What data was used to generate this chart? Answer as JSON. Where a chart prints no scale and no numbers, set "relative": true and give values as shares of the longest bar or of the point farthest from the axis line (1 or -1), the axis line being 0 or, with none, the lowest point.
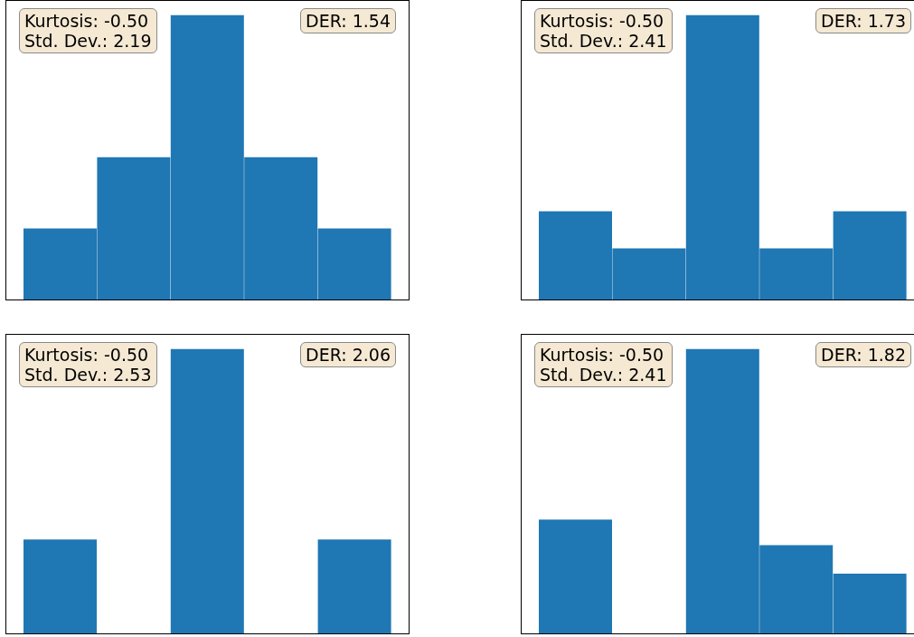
{
  "chart_data": [
    {
      "type": "bar",
      "relative": true,
      "categories": [
        null,
        null,
        null,
        null,
        null
      ],
      "values": [
        0.25,
        0.5,
        1,
        0.5,
        0.25
      ],
      "color": "#1f77b4",
      "annotations": [
        "Kurtosis: -0.50\nStd. Dev.: 2.19",
        "DER: 1.54"
      ]
    },
    {
      "type": "bar",
      "relative": true,
      "categories": [
        null,
        null,
        null,
        null,
        null
      ],
      "values": [
        0.31,
        0.18,
        1,
        0.18,
        0.31
      ],
      "color": "#1f77b4",
      "annotations": [
        "Kurtosis: -0.50\nStd. Dev.: 2.41",
        "DER: 1.73"
      ]
    },
    {
      "type": "bar",
      "relative": true,
      "categories": [
        null,
        null,
        null,
        null,
        null
      ],
      "values": [
        0.33,
        0,
        1,
        0,
        0.33
      ],
      "color": "#1f77b4",
      "annotations": [
        "Kurtosis: -0.50\nStd. Dev.: 2.53",
        "DER: 2.06"
      ]
    },
    {
      "type": "bar",
      "relative": true,
      "categories": [
        null,
        null,
        null,
        null,
        null
      ],
      "values": [
        0.4,
        0,
        1,
        0.31,
        0.21
      ],
      "color": "#1f77b4",
      "annotations": [
        "Kurtosis: -0.50\nStd. Dev.: 2.41",
        "DER: 1.82"
      ]
    }
  ]
}
